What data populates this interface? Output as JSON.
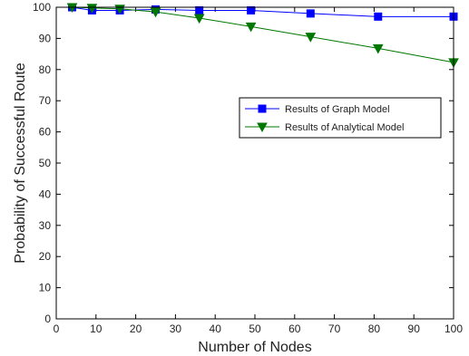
{
  "chart_data": {
    "type": "line",
    "xlabel": "Number of Nodes",
    "ylabel": "Probability of Successful Route",
    "xlim": [
      0,
      100
    ],
    "ylim": [
      0,
      100
    ],
    "xticks": [
      0,
      10,
      20,
      30,
      40,
      50,
      60,
      70,
      80,
      90,
      100
    ],
    "yticks": [
      0,
      10,
      20,
      30,
      40,
      50,
      60,
      70,
      80,
      90,
      100
    ],
    "grid": false,
    "legend_position": "right, upper-middle",
    "series": [
      {
        "name": "Results of Graph Model",
        "color": "#0000ff",
        "marker": "square",
        "x": [
          4,
          9,
          16,
          25,
          36,
          49,
          64,
          81,
          100
        ],
        "y": [
          100,
          99,
          99,
          99.3,
          99,
          99,
          98,
          97,
          97
        ]
      },
      {
        "name": "Results of Analytical Model",
        "color": "#007700",
        "marker": "triangle-down",
        "x": [
          4,
          9,
          16,
          25,
          36,
          49,
          64,
          81,
          100
        ],
        "y": [
          100,
          99.8,
          99.5,
          98.5,
          96.5,
          93.8,
          90.5,
          86.8,
          82.3
        ]
      }
    ]
  }
}
